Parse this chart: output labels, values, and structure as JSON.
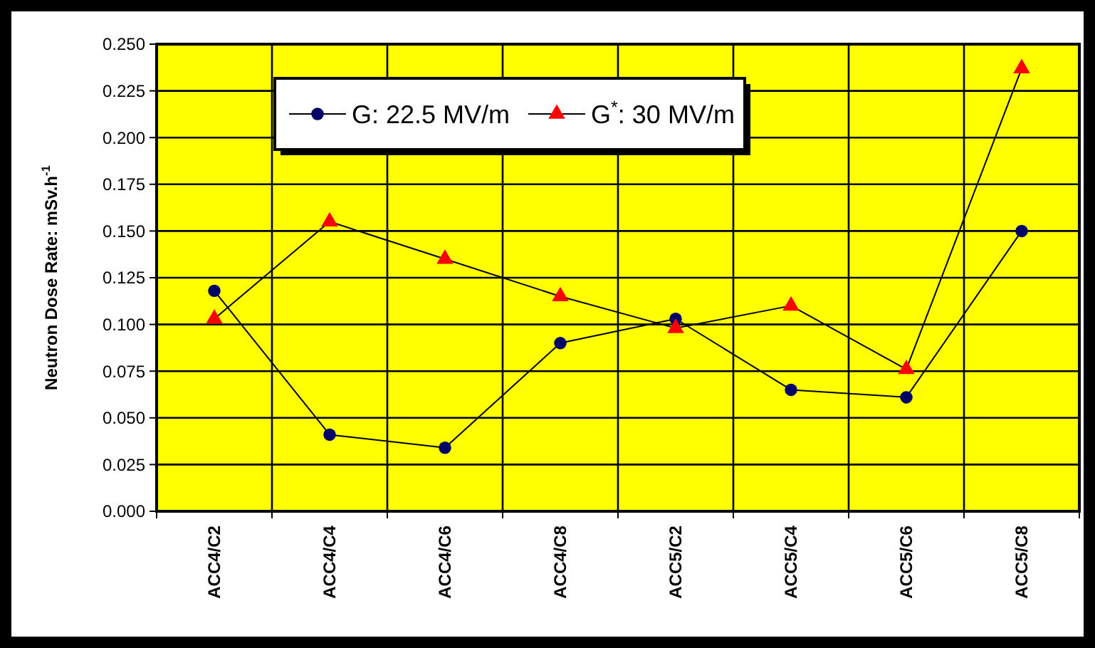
{
  "chart_data": {
    "type": "line",
    "ylabel": "Neutron Dose Rate: mSv.h$^{-1}$",
    "categories": [
      "ACC4/C2",
      "ACC4/C4",
      "ACC4/C6",
      "ACC4/C8",
      "ACC5/C2",
      "ACC5/C4",
      "ACC5/C6",
      "ACC5/C8"
    ],
    "series": [
      {
        "name": "G: 22.5 MV/m",
        "color": "#000066",
        "marker": "circle",
        "values": [
          0.118,
          0.041,
          0.034,
          0.09,
          0.103,
          0.065,
          0.061,
          0.15
        ]
      },
      {
        "name": "G$^{*}$: 30 MV/m",
        "color": "#ff0000",
        "marker": "triangle",
        "values": [
          0.103,
          0.155,
          0.135,
          0.115,
          0.098,
          0.11,
          0.076,
          0.237
        ]
      }
    ],
    "ylim": [
      0,
      0.25
    ],
    "yticks": [
      {
        "value": 0,
        "label": "0.000"
      },
      {
        "value": 0.025,
        "label": "0.025"
      },
      {
        "value": 0.05,
        "label": "0.050"
      },
      {
        "value": 0.075,
        "label": "0.075"
      },
      {
        "value": 0.1,
        "label": "0.100"
      },
      {
        "value": 0.125,
        "label": "0.125"
      },
      {
        "value": 0.15,
        "label": "0.150"
      },
      {
        "value": 0.175,
        "label": "0.175"
      },
      {
        "value": 0.2,
        "label": "0.200"
      },
      {
        "value": 0.225,
        "label": "0.225"
      },
      {
        "value": 0.25,
        "label": "0.250"
      }
    ],
    "grid": true,
    "legend": "top",
    "line_style": "solid"
  }
}
